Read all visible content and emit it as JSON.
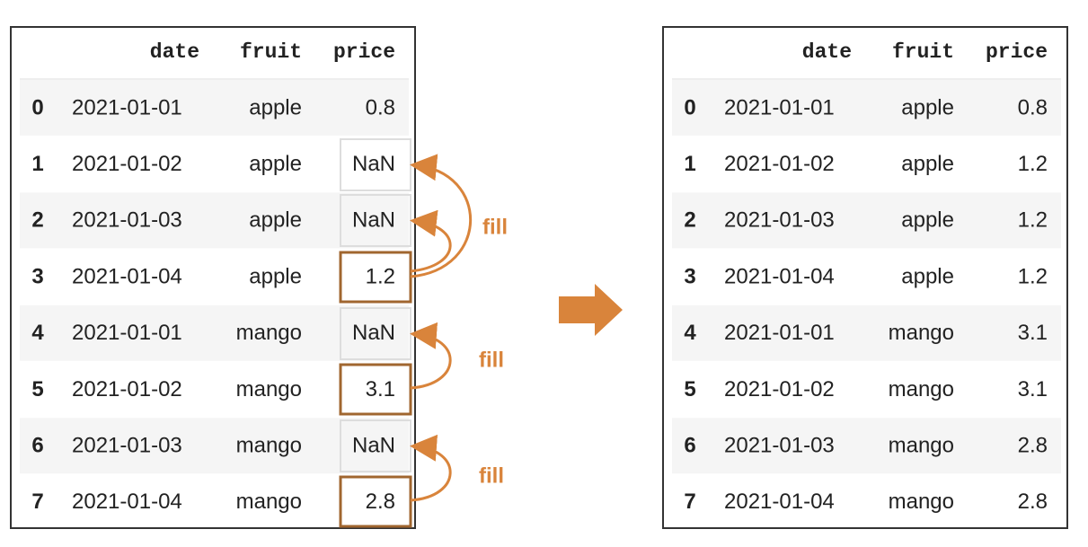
{
  "left_table": {
    "headers": [
      "date",
      "fruit",
      "price"
    ],
    "rows": [
      [
        "0",
        "2021-01-01",
        "apple",
        "0.8"
      ],
      [
        "1",
        "2021-01-02",
        "apple",
        "NaN"
      ],
      [
        "2",
        "2021-01-03",
        "apple",
        "NaN"
      ],
      [
        "3",
        "2021-01-04",
        "apple",
        "1.2"
      ],
      [
        "4",
        "2021-01-01",
        "mango",
        "NaN"
      ],
      [
        "5",
        "2021-01-02",
        "mango",
        "3.1"
      ],
      [
        "6",
        "2021-01-03",
        "mango",
        "NaN"
      ],
      [
        "7",
        "2021-01-04",
        "mango",
        "2.8"
      ]
    ]
  },
  "annotations": [
    "fill",
    "fill",
    "fill"
  ],
  "right_table": {
    "headers": [
      "date",
      "fruit",
      "price"
    ],
    "rows": [
      [
        "0",
        "2021-01-01",
        "apple",
        "0.8"
      ],
      [
        "1",
        "2021-01-02",
        "apple",
        "1.2"
      ],
      [
        "2",
        "2021-01-03",
        "apple",
        "1.2"
      ],
      [
        "3",
        "2021-01-04",
        "apple",
        "1.2"
      ],
      [
        "4",
        "2021-01-01",
        "mango",
        "3.1"
      ],
      [
        "5",
        "2021-01-02",
        "mango",
        "3.1"
      ],
      [
        "6",
        "2021-01-03",
        "mango",
        "2.8"
      ],
      [
        "7",
        "2021-01-04",
        "mango",
        "2.8"
      ]
    ]
  }
}
